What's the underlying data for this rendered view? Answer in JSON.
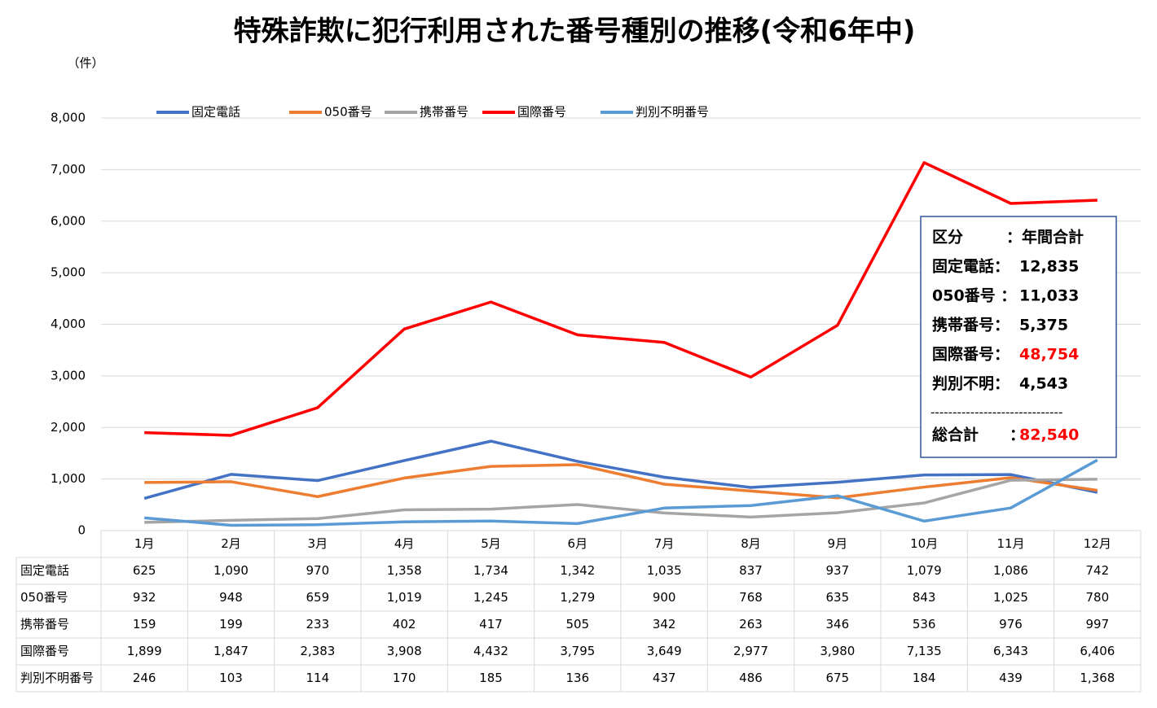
{
  "chart_data": {
    "type": "line",
    "title": "特殊詐欺に犯行利用された番号種別の推移(令和6年中)",
    "y_label": "（件）",
    "categories": [
      "1月",
      "2月",
      "3月",
      "4月",
      "5月",
      "6月",
      "7月",
      "8月",
      "9月",
      "10月",
      "11月",
      "12月"
    ],
    "series": [
      {
        "name": "固定電話",
        "color": "#4472c4",
        "values": [
          625,
          1090,
          970,
          1358,
          1734,
          1342,
          1035,
          837,
          937,
          1079,
          1086,
          742
        ],
        "value_labels": [
          "625",
          "1,090",
          "970",
          "1,358",
          "1,734",
          "1,342",
          "1,035",
          "837",
          "937",
          "1,079",
          "1,086",
          "742"
        ]
      },
      {
        "name": "050番号",
        "color": "#ed7d31",
        "values": [
          932,
          948,
          659,
          1019,
          1245,
          1279,
          900,
          768,
          635,
          843,
          1025,
          780
        ],
        "value_labels": [
          "932",
          "948",
          "659",
          "1,019",
          "1,245",
          "1,279",
          "900",
          "768",
          "635",
          "843",
          "1,025",
          "780"
        ]
      },
      {
        "name": "携帯番号",
        "color": "#a5a5a5",
        "values": [
          159,
          199,
          233,
          402,
          417,
          505,
          342,
          263,
          346,
          536,
          976,
          997
        ],
        "value_labels": [
          "159",
          "199",
          "233",
          "402",
          "417",
          "505",
          "342",
          "263",
          "346",
          "536",
          "976",
          "997"
        ]
      },
      {
        "name": "国際番号",
        "color": "#ff0000",
        "values": [
          1899,
          1847,
          2383,
          3908,
          4432,
          3795,
          3649,
          2977,
          3980,
          7135,
          6343,
          6406
        ],
        "value_labels": [
          "1,899",
          "1,847",
          "2,383",
          "3,908",
          "4,432",
          "3,795",
          "3,649",
          "2,977",
          "3,980",
          "7,135",
          "6,343",
          "6,406"
        ]
      },
      {
        "name": "判別不明番号",
        "color": "#5b9bd5",
        "values": [
          246,
          103,
          114,
          170,
          185,
          136,
          437,
          486,
          675,
          184,
          439,
          1368
        ],
        "value_labels": [
          "246",
          "103",
          "114",
          "170",
          "185",
          "136",
          "437",
          "486",
          "675",
          "184",
          "439",
          "1,368"
        ]
      }
    ],
    "ylim": [
      0,
      8000
    ],
    "yticks": [
      0,
      {
        "value": 1000,
        "label": "1,000"
      },
      {
        "value": 2000,
        "label": "2,000"
      },
      {
        "value": 3000,
        "label": "3,000"
      },
      {
        "value": 4000,
        "label": "4,000"
      },
      {
        "value": 5000,
        "label": "5,000"
      },
      {
        "value": 6000,
        "label": "6,000"
      },
      {
        "value": 7000,
        "label": "7,000"
      },
      {
        "value": 8000,
        "label": "8,000"
      }
    ],
    "grid": true,
    "legend": "top",
    "summary": {
      "header": [
        "区分",
        "：年間合計"
      ],
      "rows": [
        {
          "label": "固定電話：",
          "value": "12,835",
          "color": "#000000"
        },
        {
          "label": " 050番号 ：",
          "value": "11,033",
          "color": "#000000"
        },
        {
          "label": "携帯番号：",
          "value": "5,375",
          "color": "#000000"
        },
        {
          "label": "国際番号：",
          "value": "48,754",
          "color": "#ff0000"
        },
        {
          "label": "判別不明：",
          "value": "4,543",
          "color": "#000000"
        }
      ],
      "divider": "------------------------------",
      "total": {
        "label": "総合計　　：",
        "value": "82,540",
        "color": "#ff0000"
      }
    }
  }
}
